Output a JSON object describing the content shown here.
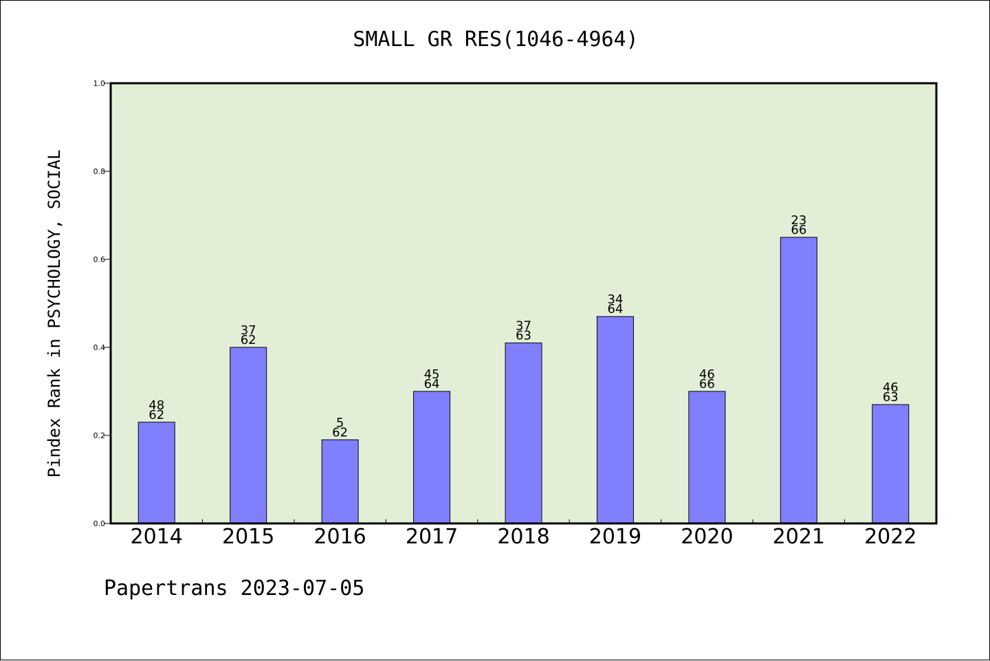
{
  "chart_data": {
    "type": "bar",
    "title": "SMALL GR RES(1046-4964)",
    "xlabel": "",
    "ylabel": "Pindex Rank in PSYCHOLOGY, SOCIAL",
    "categories": [
      "2014",
      "2015",
      "2016",
      "2017",
      "2018",
      "2019",
      "2020",
      "2021",
      "2022"
    ],
    "values": [
      0.23,
      0.4,
      0.19,
      0.3,
      0.41,
      0.47,
      0.3,
      0.65,
      0.27
    ],
    "bar_labels": [
      [
        "48",
        "62"
      ],
      [
        "37",
        "62"
      ],
      [
        "5",
        "62"
      ],
      [
        "45",
        "64"
      ],
      [
        "37",
        "63"
      ],
      [
        "34",
        "64"
      ],
      [
        "46",
        "66"
      ],
      [
        "23",
        "66"
      ],
      [
        "46",
        "63"
      ]
    ],
    "ylim": [
      0,
      1.0
    ],
    "yticks": [
      "0.0",
      "0.2",
      "0.4",
      "0.6",
      "0.8",
      "1.0"
    ],
    "grid": false,
    "colors": {
      "bar": "#8080ff",
      "plot_background": "#e2efd6",
      "axis": "#000000"
    }
  },
  "footer": {
    "credit": "Papertrans 2023-07-05"
  }
}
